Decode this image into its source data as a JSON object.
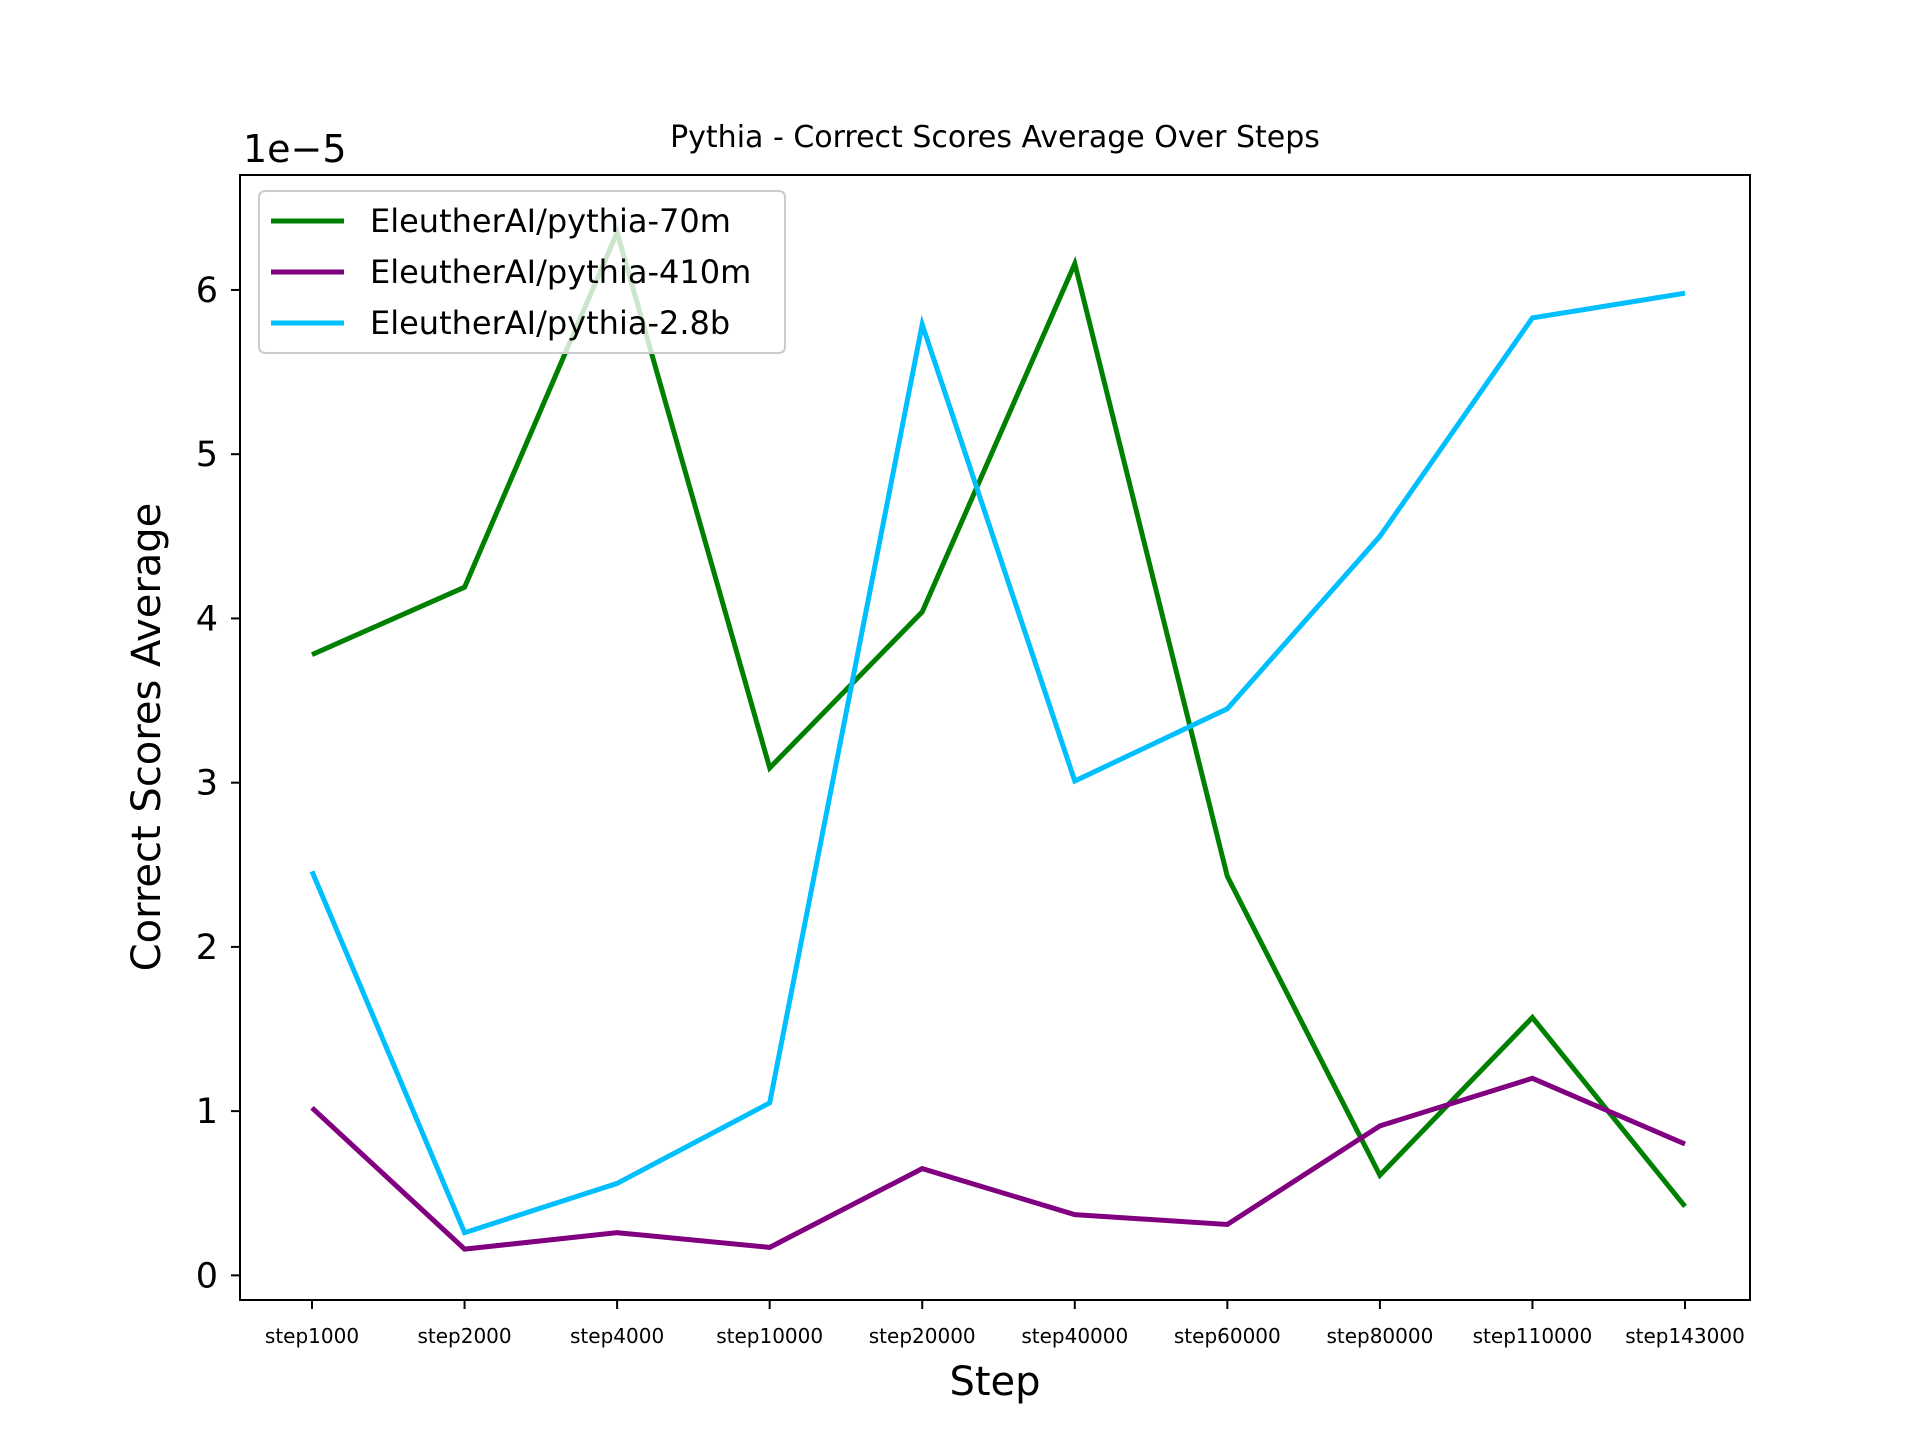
{
  "chart_data": {
    "type": "line",
    "title": "Pythia - Correct Scores Average Over Steps",
    "xlabel": "Step",
    "ylabel": "Correct Scores Average",
    "y_offset_label": "1e−5",
    "y_scale_factor": 1e-05,
    "ylim": [
      -0.15,
      6.7
    ],
    "yticks": [
      0,
      1,
      2,
      3,
      4,
      5,
      6
    ],
    "grid": false,
    "legend_position": "upper-left",
    "categories": [
      "step1000",
      "step2000",
      "step4000",
      "step10000",
      "step20000",
      "step40000",
      "step60000",
      "step80000",
      "step110000",
      "step143000"
    ],
    "series": [
      {
        "name": "EleutherAI/pythia-70m",
        "color": "#008000",
        "values": [
          3.78,
          4.19,
          6.35,
          3.09,
          4.04,
          6.16,
          2.43,
          0.61,
          1.57,
          0.42
        ]
      },
      {
        "name": "EleutherAI/pythia-410m",
        "color": "#800080",
        "values": [
          1.02,
          0.16,
          0.26,
          0.17,
          0.65,
          0.37,
          0.31,
          0.91,
          1.2,
          0.8
        ]
      },
      {
        "name": "EleutherAI/pythia-2.8b",
        "color": "#00BFFF",
        "values": [
          2.46,
          0.26,
          0.56,
          1.05,
          5.79,
          3.01,
          3.45,
          4.5,
          5.83,
          5.98
        ]
      }
    ]
  }
}
